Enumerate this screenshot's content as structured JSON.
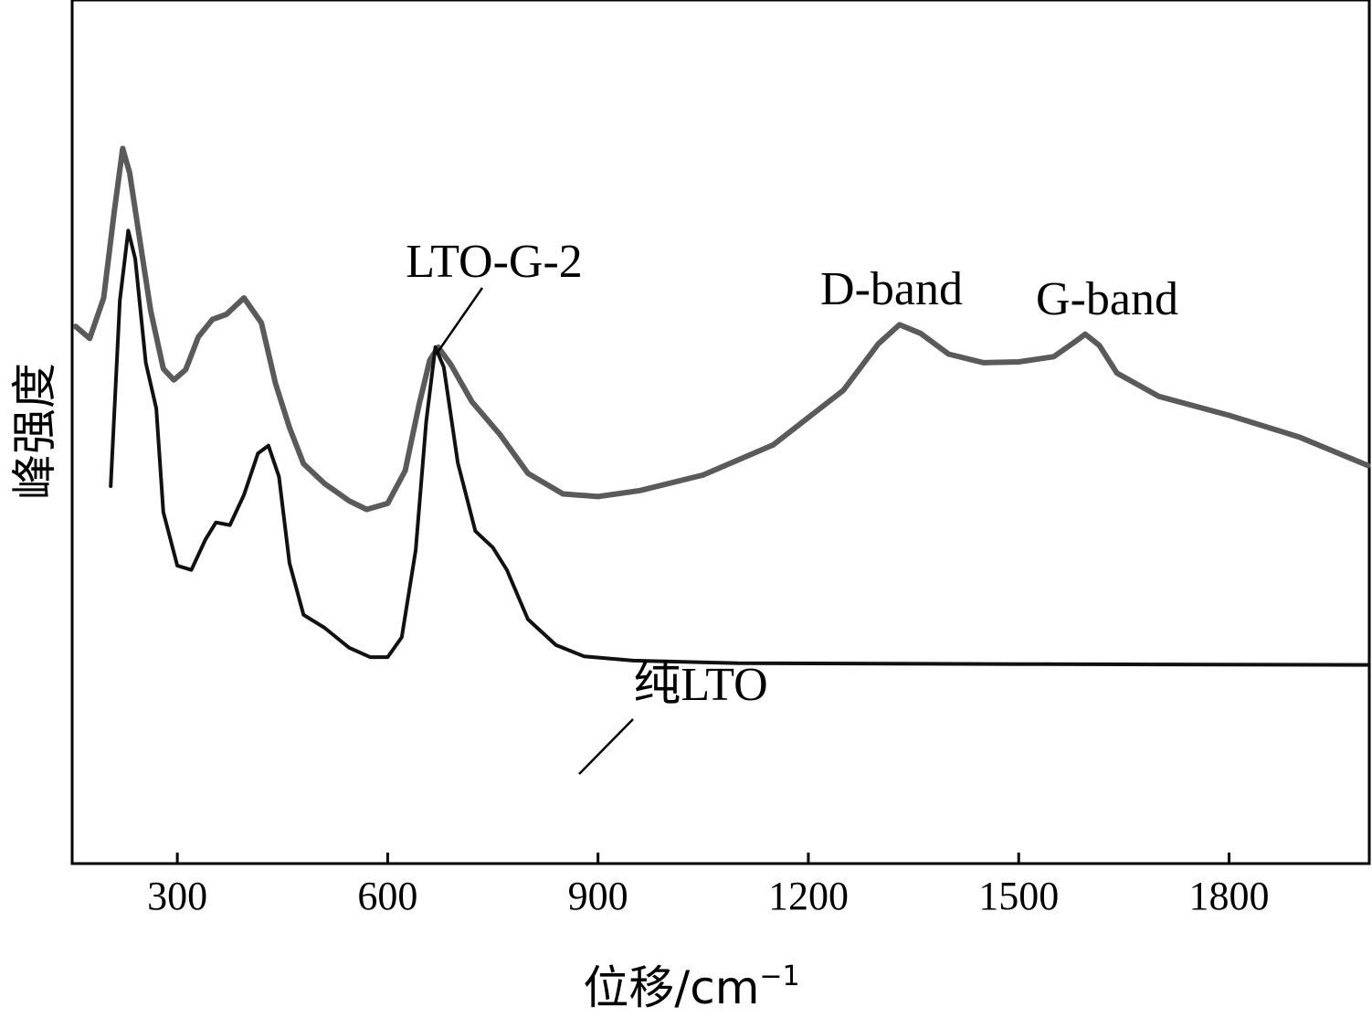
{
  "chart_data": {
    "type": "line",
    "title": "",
    "xlabel": "位移/cm",
    "xlabel_superscript": "−1",
    "ylabel": "峰强度",
    "xlim": [
      150,
      2000
    ],
    "x_ticks": [
      300,
      600,
      900,
      1200,
      1500,
      1800
    ],
    "y_ticks_shown": false,
    "grid": false,
    "legend": "none",
    "series": [
      {
        "name": "LTO-G-2",
        "color": "#5a5a5a",
        "points": [
          [
            155,
            0.622
          ],
          [
            175,
            0.608
          ],
          [
            195,
            0.655
          ],
          [
            210,
            0.755
          ],
          [
            222,
            0.828
          ],
          [
            232,
            0.8
          ],
          [
            245,
            0.73
          ],
          [
            262,
            0.64
          ],
          [
            280,
            0.573
          ],
          [
            295,
            0.56
          ],
          [
            312,
            0.572
          ],
          [
            330,
            0.61
          ],
          [
            350,
            0.63
          ],
          [
            370,
            0.636
          ],
          [
            395,
            0.655
          ],
          [
            420,
            0.626
          ],
          [
            440,
            0.556
          ],
          [
            460,
            0.505
          ],
          [
            480,
            0.463
          ],
          [
            510,
            0.44
          ],
          [
            545,
            0.42
          ],
          [
            570,
            0.41
          ],
          [
            600,
            0.417
          ],
          [
            625,
            0.455
          ],
          [
            645,
            0.532
          ],
          [
            660,
            0.583
          ],
          [
            672,
            0.598
          ],
          [
            690,
            0.578
          ],
          [
            720,
            0.535
          ],
          [
            760,
            0.497
          ],
          [
            800,
            0.452
          ],
          [
            850,
            0.428
          ],
          [
            900,
            0.425
          ],
          [
            960,
            0.432
          ],
          [
            1050,
            0.45
          ],
          [
            1150,
            0.485
          ],
          [
            1250,
            0.548
          ],
          [
            1300,
            0.602
          ],
          [
            1330,
            0.624
          ],
          [
            1360,
            0.614
          ],
          [
            1400,
            0.59
          ],
          [
            1450,
            0.58
          ],
          [
            1500,
            0.581
          ],
          [
            1550,
            0.587
          ],
          [
            1580,
            0.604
          ],
          [
            1595,
            0.613
          ],
          [
            1615,
            0.6
          ],
          [
            1640,
            0.568
          ],
          [
            1700,
            0.541
          ],
          [
            1800,
            0.519
          ],
          [
            1900,
            0.494
          ],
          [
            1998,
            0.461
          ]
        ]
      },
      {
        "name": "纯LTO",
        "color": "#111111",
        "points": [
          [
            205,
            0.437
          ],
          [
            218,
            0.652
          ],
          [
            230,
            0.733
          ],
          [
            240,
            0.7
          ],
          [
            255,
            0.58
          ],
          [
            270,
            0.527
          ],
          [
            280,
            0.407
          ],
          [
            300,
            0.345
          ],
          [
            320,
            0.34
          ],
          [
            340,
            0.375
          ],
          [
            355,
            0.395
          ],
          [
            375,
            0.392
          ],
          [
            395,
            0.427
          ],
          [
            415,
            0.475
          ],
          [
            430,
            0.484
          ],
          [
            445,
            0.448
          ],
          [
            460,
            0.348
          ],
          [
            480,
            0.288
          ],
          [
            510,
            0.273
          ],
          [
            545,
            0.25
          ],
          [
            575,
            0.239
          ],
          [
            600,
            0.239
          ],
          [
            620,
            0.262
          ],
          [
            640,
            0.363
          ],
          [
            655,
            0.512
          ],
          [
            668,
            0.598
          ],
          [
            680,
            0.575
          ],
          [
            700,
            0.464
          ],
          [
            725,
            0.385
          ],
          [
            750,
            0.366
          ],
          [
            770,
            0.34
          ],
          [
            800,
            0.283
          ],
          [
            840,
            0.253
          ],
          [
            880,
            0.24
          ],
          [
            950,
            0.235
          ],
          [
            1100,
            0.232
          ],
          [
            1500,
            0.231
          ],
          [
            1998,
            0.23
          ]
        ]
      }
    ],
    "annotations": [
      {
        "text": "LTO-G-2",
        "series": "LTO-G-2"
      },
      {
        "text": "D-band"
      },
      {
        "text": "G-band"
      },
      {
        "text": "纯LTO",
        "series": "纯LTO"
      }
    ]
  }
}
